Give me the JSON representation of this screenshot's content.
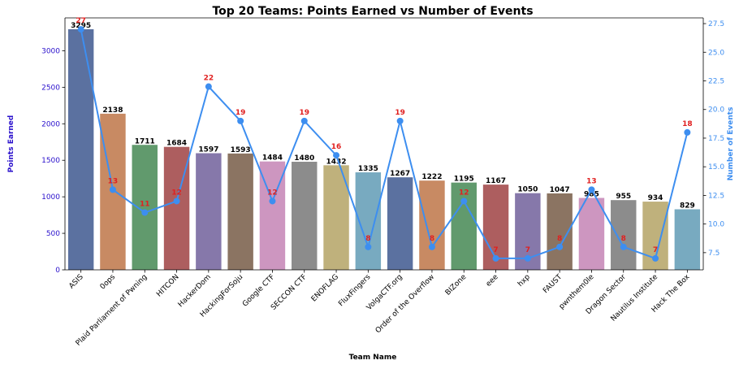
{
  "chart_data": {
    "type": "bar",
    "title": "Top 20 Teams: Points Earned vs Number of Events",
    "xlabel": "Team Name",
    "ylabel": "Points Earned",
    "y2label": "Number of Events",
    "ylim": [
      0,
      3450
    ],
    "y2lim": [
      6.0,
      28.0
    ],
    "y_ticks": [
      0,
      500,
      1000,
      1500,
      2000,
      2500,
      3000
    ],
    "y2_ticks": [
      "7.5",
      "10.0",
      "12.5",
      "15.0",
      "17.5",
      "20.0",
      "22.5",
      "25.0",
      "27.5"
    ],
    "grid": false,
    "categories": [
      "ASIS",
      "0ops",
      "Plaid Parliament of Pwning",
      "HITCON",
      "HackerDom",
      "HackingForSoju",
      "Google CTF",
      "SECCON CTF",
      "ENOFLAG",
      "FluxFingers",
      "VolgaCTF.org",
      "Order of the Overflow",
      "BIZone",
      "eee",
      "hxp",
      "FAUST",
      "pwnthem0le",
      "Dragon Sector",
      "Nautilus Institute",
      "Hack The Box"
    ],
    "series": [
      {
        "axis": "left",
        "kind": "bar",
        "values": [
          3295,
          2138,
          1711,
          1684,
          1597,
          1593,
          1484,
          1480,
          1432,
          1335,
          1267,
          1222,
          1195,
          1167,
          1050,
          1047,
          985,
          955,
          934,
          829
        ]
      },
      {
        "axis": "right",
        "kind": "line",
        "color": "#3d8ef0",
        "values": [
          27,
          13,
          11,
          12,
          22,
          19,
          12,
          19,
          16,
          8,
          19,
          8,
          12,
          7,
          7,
          8,
          13,
          8,
          7,
          18
        ]
      }
    ],
    "bar_colors": [
      "#5b71a0",
      "#c88a63",
      "#619a6d",
      "#ad5e5f",
      "#8678aa",
      "#8b7462",
      "#cd96c0",
      "#8c8c8c",
      "#bfb17c",
      "#78aac0"
    ],
    "axis_label_colors": {
      "left": "#2a10cc",
      "right": "#3d8ef0",
      "event_labels": "#e02020"
    }
  }
}
